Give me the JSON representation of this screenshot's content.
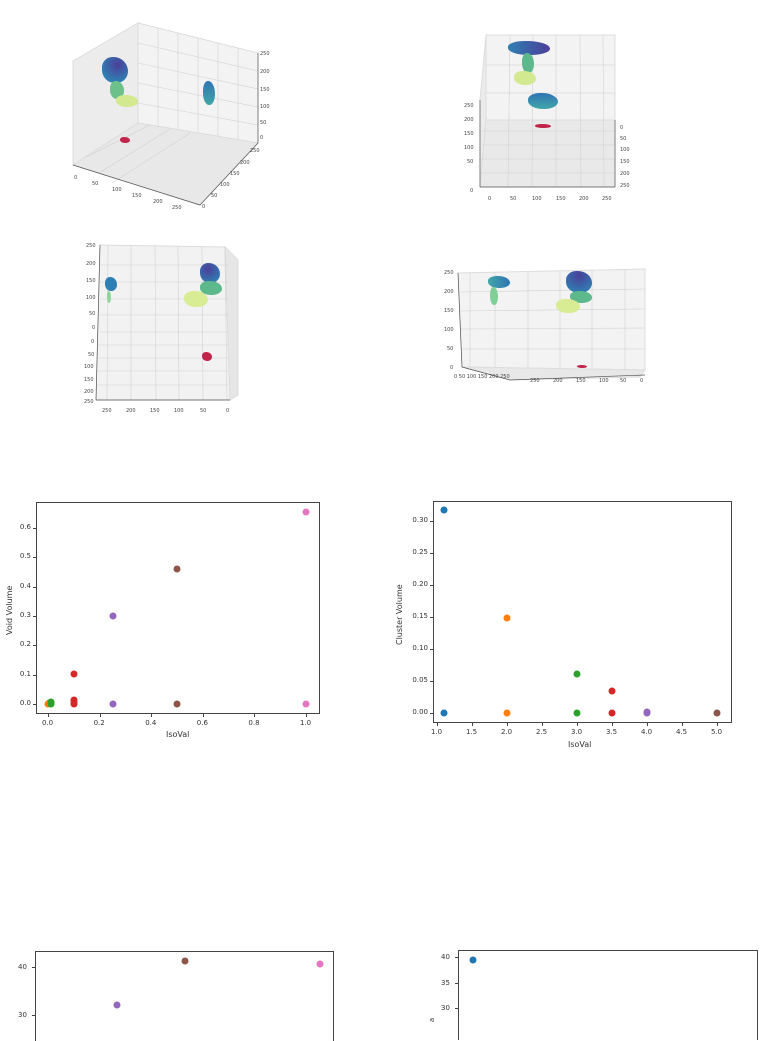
{
  "figures_3d": [
    {
      "view": "perspective",
      "z_ticks": [
        "250",
        "200",
        "150",
        "100",
        "50",
        "0"
      ],
      "x_ticks": [
        "0",
        "50",
        "100",
        "150",
        "200",
        "250"
      ],
      "y_ticks": [
        "250",
        "200",
        "150",
        "100",
        "50",
        "0"
      ]
    },
    {
      "view": "front-elevated",
      "z_ticks": [
        "250",
        "200",
        "150",
        "100",
        "50",
        "0"
      ],
      "x_ticks": [
        "0",
        "50",
        "100",
        "150",
        "200",
        "250"
      ],
      "y_ticks": [
        "0",
        "50",
        "100",
        "150",
        "200",
        "250"
      ]
    },
    {
      "view": "top-down",
      "z_ticks": [
        "250",
        "200",
        "150",
        "100",
        "50",
        "0"
      ],
      "y_ticks": [
        "0",
        "50",
        "100",
        "150",
        "200",
        "250"
      ],
      "x_ticks": [
        "250",
        "200",
        "150",
        "100",
        "50",
        "0"
      ]
    },
    {
      "view": "side-low",
      "z_ticks": [
        "250",
        "200",
        "150",
        "100",
        "50",
        "0"
      ],
      "x_ticks_left": "0 50 100 150 200 250",
      "x_ticks": [
        "250",
        "200",
        "150",
        "100",
        "50",
        "0"
      ]
    }
  ],
  "chart_data": [
    {
      "type": "scatter",
      "title": "",
      "xlabel": "IsoVal",
      "ylabel": "Void Volume",
      "xlim": [
        -0.05,
        1.05
      ],
      "ylim": [
        -0.03,
        0.68
      ],
      "x_ticks": [
        "0.0",
        "0.2",
        "0.4",
        "0.6",
        "0.8",
        "1.0"
      ],
      "y_ticks": [
        "0.0",
        "0.1",
        "0.2",
        "0.3",
        "0.4",
        "0.5",
        "0.6"
      ],
      "grid": false,
      "series": [
        {
          "name": "s0",
          "color": "#ff7f0e",
          "points": [
            [
              0.0,
              0.0
            ],
            [
              0.005,
              0.002
            ]
          ]
        },
        {
          "name": "s1",
          "color": "#2ca02c",
          "points": [
            [
              0.01,
              0.0
            ],
            [
              0.01,
              0.004
            ],
            [
              0.01,
              0.006
            ]
          ]
        },
        {
          "name": "s2",
          "color": "#d62728",
          "points": [
            [
              0.1,
              0.102
            ],
            [
              0.1,
              0.012
            ],
            [
              0.1,
              0.006
            ],
            [
              0.1,
              0.0
            ]
          ]
        },
        {
          "name": "s3",
          "color": "#9467bd",
          "points": [
            [
              0.25,
              0.301
            ],
            [
              0.25,
              0.0
            ]
          ]
        },
        {
          "name": "s4",
          "color": "#8c564b",
          "points": [
            [
              0.5,
              0.461
            ],
            [
              0.5,
              0.0
            ]
          ]
        },
        {
          "name": "s5",
          "color": "#e377c2",
          "points": [
            [
              1.0,
              0.654
            ],
            [
              1.0,
              0.0
            ]
          ]
        }
      ]
    },
    {
      "type": "scatter",
      "title": "",
      "xlabel": "IsoVal",
      "ylabel": "Cluster Volume",
      "xlim": [
        0.95,
        5.2
      ],
      "ylim": [
        -0.016,
        0.332
      ],
      "x_ticks": [
        "1.0",
        "1.5",
        "2.0",
        "2.5",
        "3.0",
        "3.5",
        "4.0",
        "4.5",
        "5.0"
      ],
      "y_ticks": [
        "0.00",
        "0.05",
        "0.10",
        "0.15",
        "0.20",
        "0.25",
        "0.30"
      ],
      "grid": false,
      "series": [
        {
          "name": "s0",
          "color": "#1f77b4",
          "points": [
            [
              1.1,
              0.317
            ],
            [
              1.1,
              0.0
            ]
          ]
        },
        {
          "name": "s1",
          "color": "#ff7f0e",
          "points": [
            [
              2.0,
              0.149
            ],
            [
              2.0,
              0.0
            ]
          ]
        },
        {
          "name": "s2",
          "color": "#2ca02c",
          "points": [
            [
              3.0,
              0.061
            ],
            [
              3.0,
              0.0
            ]
          ]
        },
        {
          "name": "s3",
          "color": "#d62728",
          "points": [
            [
              3.5,
              0.034
            ],
            [
              3.5,
              0.0
            ]
          ]
        },
        {
          "name": "s4",
          "color": "#9467bd",
          "points": [
            [
              4.0,
              0.001
            ],
            [
              4.0,
              0.0
            ]
          ]
        },
        {
          "name": "s5",
          "color": "#8c564b",
          "points": [
            [
              5.0,
              0.0
            ]
          ]
        }
      ]
    },
    {
      "type": "scatter",
      "title": "",
      "partial": true,
      "y_ticks_visible": [
        "40",
        "30"
      ],
      "series": [
        {
          "name": "s3",
          "color": "#9467bd",
          "points": [
            [
              0.25,
              32.3
            ]
          ]
        },
        {
          "name": "s4",
          "color": "#8c564b",
          "points": [
            [
              0.5,
              41.2
            ]
          ]
        },
        {
          "name": "s5",
          "color": "#e377c2",
          "points": [
            [
              1.0,
              40.6
            ]
          ]
        }
      ]
    },
    {
      "type": "scatter",
      "title": "",
      "partial": true,
      "ylabel_partial": "a",
      "y_ticks_visible": [
        "40",
        "35",
        "30"
      ],
      "series": [
        {
          "name": "s0",
          "color": "#1f77b4",
          "points": [
            [
              1.1,
              39.4
            ]
          ]
        }
      ]
    }
  ]
}
